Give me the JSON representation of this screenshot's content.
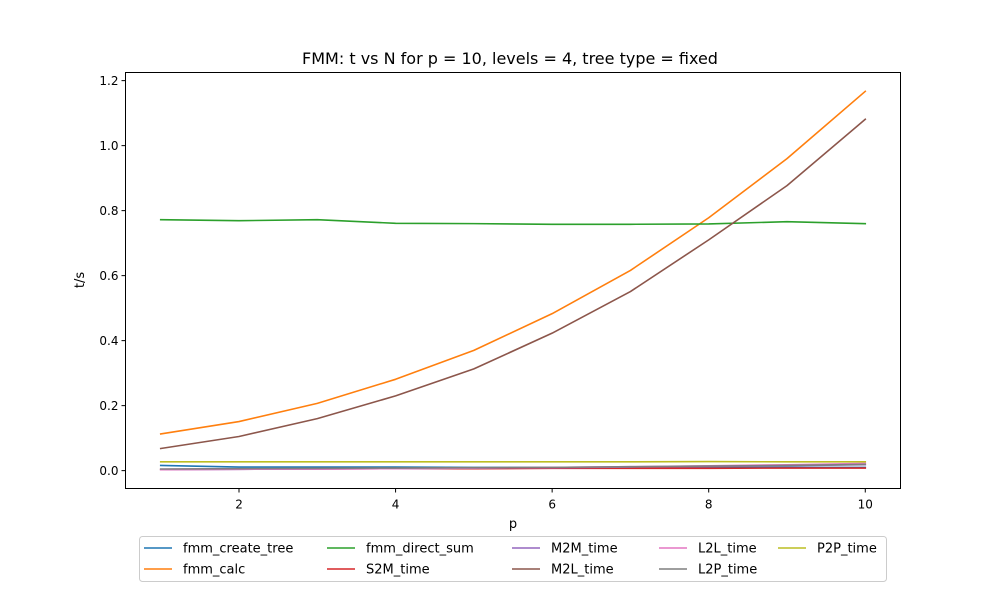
{
  "chart_data": {
    "type": "line",
    "title": "FMM: t vs N for p = 10, levels = 4, tree type = fixed",
    "xlabel": "p",
    "ylabel": "t/s",
    "xlim": [
      0.55,
      10.45
    ],
    "ylim": [
      -0.055,
      1.225
    ],
    "xticks": [
      2,
      4,
      6,
      8,
      10
    ],
    "yticks": [
      0.0,
      0.2,
      0.4,
      0.6,
      0.8,
      1.0,
      1.2
    ],
    "grid": false,
    "legend_position": "bottom-center",
    "x": [
      1,
      2,
      3,
      4,
      5,
      6,
      7,
      8,
      9,
      10
    ],
    "series": [
      {
        "name": "fmm_create_tree",
        "color": "#1f77b4",
        "values": [
          0.016,
          0.011,
          0.011,
          0.011,
          0.01,
          0.01,
          0.01,
          0.01,
          0.01,
          0.01
        ]
      },
      {
        "name": "fmm_calc",
        "color": "#ff7f0e",
        "values": [
          0.113,
          0.151,
          0.207,
          0.281,
          0.37,
          0.483,
          0.616,
          0.778,
          0.96,
          1.167
        ]
      },
      {
        "name": "fmm_direct_sum",
        "color": "#2ca02c",
        "values": [
          0.772,
          0.769,
          0.772,
          0.761,
          0.76,
          0.758,
          0.758,
          0.759,
          0.766,
          0.76
        ]
      },
      {
        "name": "S2M_time",
        "color": "#d62728",
        "values": [
          0.004,
          0.005,
          0.005,
          0.006,
          0.006,
          0.007,
          0.007,
          0.007,
          0.008,
          0.008
        ]
      },
      {
        "name": "M2M_time",
        "color": "#9467bd",
        "values": [
          0.003,
          0.004,
          0.005,
          0.006,
          0.008,
          0.009,
          0.011,
          0.013,
          0.015,
          0.018
        ]
      },
      {
        "name": "M2L_time",
        "color": "#8c564b",
        "values": [
          0.068,
          0.105,
          0.16,
          0.23,
          0.313,
          0.423,
          0.551,
          0.71,
          0.877,
          1.081
        ]
      },
      {
        "name": "L2L_time",
        "color": "#e377c2",
        "values": [
          0.003,
          0.004,
          0.005,
          0.006,
          0.008,
          0.01,
          0.012,
          0.015,
          0.018,
          0.022
        ]
      },
      {
        "name": "L2P_time",
        "color": "#7f7f7f",
        "values": [
          0.005,
          0.006,
          0.007,
          0.008,
          0.009,
          0.01,
          0.012,
          0.014,
          0.016,
          0.019
        ]
      },
      {
        "name": "P2P_time",
        "color": "#bcbd22",
        "values": [
          0.027,
          0.027,
          0.027,
          0.027,
          0.027,
          0.027,
          0.027,
          0.028,
          0.027,
          0.027
        ]
      }
    ]
  }
}
